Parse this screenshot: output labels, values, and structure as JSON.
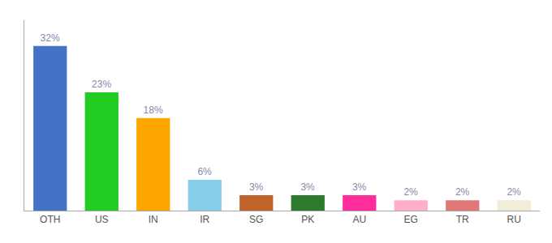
{
  "chart_data": {
    "type": "bar",
    "categories": [
      "OTH",
      "US",
      "IN",
      "IR",
      "SG",
      "PK",
      "AU",
      "EG",
      "TR",
      "RU"
    ],
    "values": [
      32,
      23,
      18,
      6,
      3,
      3,
      3,
      2,
      2,
      2
    ],
    "value_labels": [
      "32%",
      "23%",
      "18%",
      "6%",
      "3%",
      "3%",
      "3%",
      "2%",
      "2%",
      "2%"
    ],
    "colors": [
      "#4472C4",
      "#22CC22",
      "#FFA500",
      "#87CEEB",
      "#C0632A",
      "#2D7A2D",
      "#FF2D9B",
      "#FFB0C8",
      "#E07878",
      "#F0EDD8"
    ],
    "ylim": [
      0,
      37
    ],
    "data_labels": true,
    "tick_labels": "x",
    "grid": false
  }
}
